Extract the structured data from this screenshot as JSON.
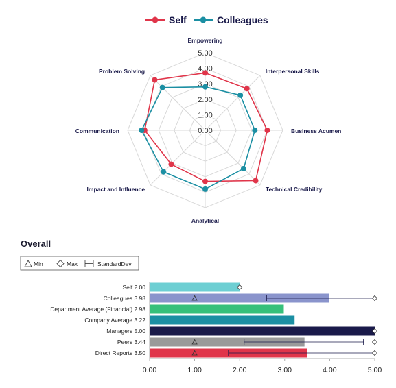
{
  "radar": {
    "axes": [
      "Empowering",
      "Interpersonal Skills",
      "Business Acumen",
      "Technical Credibility",
      "Analytical",
      "Impact and Influence",
      "Communication",
      "Problem Solving"
    ],
    "ticks": [
      "0.00",
      "1.00",
      "2.00",
      "3.00",
      "4.00",
      "5.00"
    ],
    "legend": [
      {
        "name": "Self",
        "color": "#e0354a"
      },
      {
        "name": "Colleagues",
        "color": "#1b8fa3"
      }
    ]
  },
  "overall": {
    "title": "Overall",
    "legend": {
      "min": "Min",
      "max": "Max",
      "std": "StandardDev"
    },
    "x_ticks": [
      "0.00",
      "1.00",
      "2.00",
      "3.00",
      "4.00",
      "5.00"
    ]
  },
  "chart_data": [
    {
      "type": "radar",
      "categories": [
        "Empowering",
        "Interpersonal Skills",
        "Business Acumen",
        "Technical Credibility",
        "Analytical",
        "Impact and Influence",
        "Communication",
        "Problem Solving"
      ],
      "series": [
        {
          "name": "Self",
          "color": "#e0354a",
          "values": [
            3.7,
            3.8,
            4.0,
            4.6,
            3.3,
            3.1,
            3.9,
            4.6
          ]
        },
        {
          "name": "Colleagues",
          "color": "#1b8fa3",
          "values": [
            2.8,
            3.2,
            3.2,
            3.5,
            3.8,
            3.8,
            4.1,
            3.9
          ]
        }
      ],
      "rlim": [
        0,
        5
      ]
    },
    {
      "type": "bar",
      "orientation": "horizontal",
      "title": "Overall",
      "categories": [
        "Self 2.00",
        "Colleagues 3.98",
        "Department Average (Financial) 2.98",
        "Company Average 3.22",
        "Managers 5.00",
        "Peers 3.44",
        "Direct Reports 3.50"
      ],
      "values": [
        2.0,
        3.98,
        2.98,
        3.22,
        5.0,
        3.44,
        3.5
      ],
      "colors": [
        "#6dcfd3",
        "#8a94cc",
        "#36c07a",
        "#1b8fa3",
        "#1a1a4a",
        "#9a9a9a",
        "#e0354a"
      ],
      "min": [
        null,
        1.0,
        null,
        null,
        null,
        1.0,
        1.0
      ],
      "max": [
        2.0,
        5.0,
        null,
        null,
        5.0,
        5.0,
        5.0
      ],
      "std_range": [
        null,
        [
          2.6,
          5.0
        ],
        null,
        null,
        null,
        [
          2.1,
          4.75
        ],
        [
          1.75,
          5.0
        ]
      ],
      "xlim": [
        0,
        5
      ]
    }
  ]
}
